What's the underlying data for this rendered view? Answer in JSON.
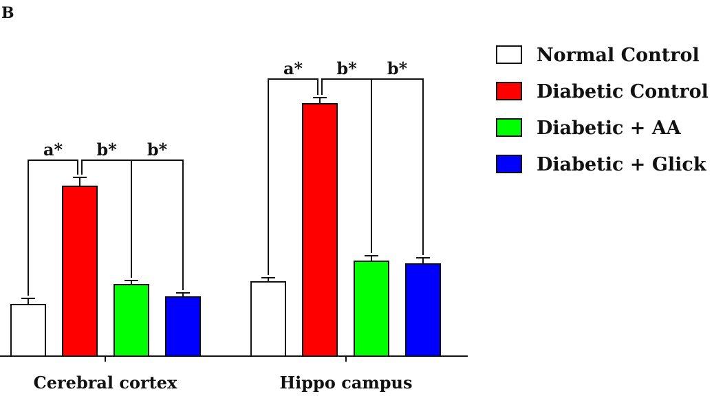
{
  "panel_label": "B",
  "chart_data": {
    "type": "bar",
    "categories": [
      "Cerebral cortex",
      "Hippo campus"
    ],
    "series": [
      {
        "name": "Normal Control",
        "color": "#ffffff",
        "values": [
          0.75,
          1.08
        ],
        "errors": [
          0.09,
          0.06
        ]
      },
      {
        "name": "Diabetic Control",
        "color": "#ff0000",
        "values": [
          2.47,
          3.67
        ],
        "errors": [
          0.13,
          0.09
        ]
      },
      {
        "name": "Diabetic + AA",
        "color": "#00ff00",
        "values": [
          1.04,
          1.38
        ],
        "errors": [
          0.06,
          0.08
        ]
      },
      {
        "name": "Diabetic + Glick",
        "color": "#0000ff",
        "values": [
          0.86,
          1.34
        ],
        "errors": [
          0.06,
          0.09
        ]
      }
    ],
    "ylim": [
      0,
      4.1
    ],
    "legend_position": "top-right",
    "annotations": [
      {
        "category": 0,
        "text": "a*",
        "from_series": 0,
        "to_series": 1,
        "level": 2.85
      },
      {
        "category": 0,
        "text": "b*",
        "from_series": 1,
        "to_series": 2,
        "level": 2.85
      },
      {
        "category": 0,
        "text": "b*",
        "from_series": 2,
        "to_series": 3,
        "level": 2.85
      },
      {
        "category": 1,
        "text": "a*",
        "from_series": 0,
        "to_series": 1,
        "level": 4.03
      },
      {
        "category": 1,
        "text": "b*",
        "from_series": 1,
        "to_series": 2,
        "level": 4.03
      },
      {
        "category": 1,
        "text": "b*",
        "from_series": 2,
        "to_series": 3,
        "level": 4.03
      }
    ]
  }
}
